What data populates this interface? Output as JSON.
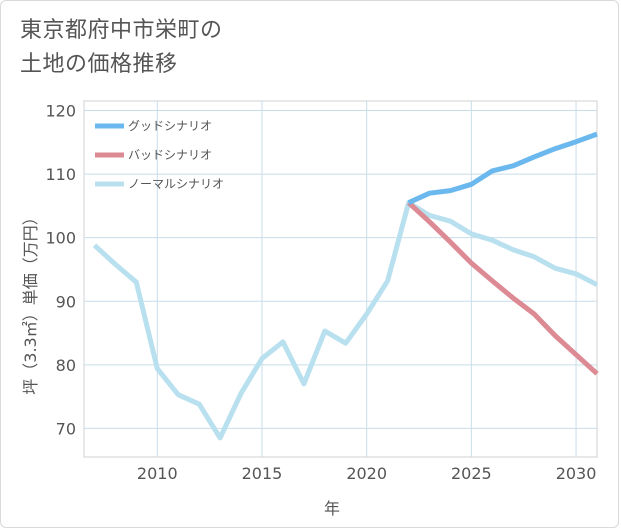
{
  "chart_data": {
    "type": "line",
    "title_lines": [
      "東京都府中市栄町の",
      "土地の価格推移"
    ],
    "xlabel": "年",
    "ylabel": "坪（3.3㎡）単価（万円）",
    "xlim": [
      2006.5,
      2031
    ],
    "ylim": [
      65.5,
      121.5
    ],
    "xticks": [
      2010,
      2015,
      2020,
      2025,
      2030
    ],
    "yticks": [
      70,
      80,
      90,
      100,
      110,
      120
    ],
    "grid": true,
    "legend_position": "top-left",
    "series": [
      {
        "name": "グッドシナリオ",
        "color": "#6bb8ef",
        "x": [
          2022,
          2023,
          2024,
          2025,
          2026,
          2027,
          2028,
          2029,
          2030,
          2031
        ],
        "y": [
          105.5,
          107.0,
          107.4,
          108.4,
          110.5,
          111.3,
          112.7,
          114.0,
          115.1,
          116.3
        ]
      },
      {
        "name": "バッドシナリオ",
        "color": "#dc8a93",
        "x": [
          2022,
          2023,
          2024,
          2025,
          2026,
          2027,
          2028,
          2029,
          2030,
          2031
        ],
        "y": [
          105.5,
          102.5,
          99.3,
          96.0,
          93.2,
          90.5,
          88.0,
          84.6,
          81.6,
          78.6
        ]
      },
      {
        "name": "ノーマルシナリオ",
        "color": "#b8e0ee",
        "x": [
          2007,
          2008,
          2009,
          2010,
          2011,
          2012,
          2013,
          2014,
          2015,
          2016,
          2017,
          2018,
          2019,
          2020,
          2021,
          2022,
          2023,
          2024,
          2025,
          2026,
          2027,
          2028,
          2029,
          2030,
          2031
        ],
        "y": [
          98.8,
          95.8,
          93.0,
          79.4,
          75.3,
          73.8,
          68.5,
          75.5,
          81.0,
          83.6,
          77.0,
          85.3,
          83.4,
          88.0,
          93.2,
          105.5,
          103.5,
          102.6,
          100.6,
          99.6,
          98.1,
          97.0,
          95.2,
          94.3,
          92.6
        ]
      }
    ]
  }
}
